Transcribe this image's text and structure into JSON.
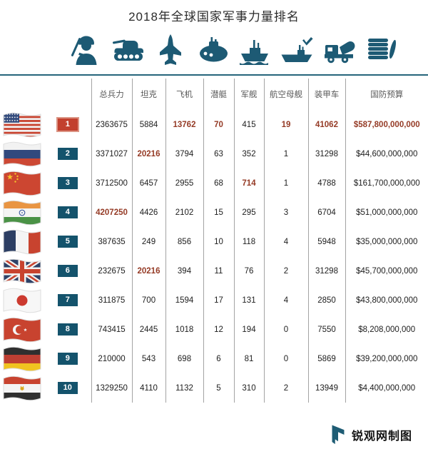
{
  "title": "2018年全球国家军事力量排名",
  "icons": [
    "soldier-icon",
    "tank-icon",
    "fighter-jet-icon",
    "submarine-icon",
    "warship-icon",
    "aircraft-carrier-icon",
    "military-truck-icon",
    "money-coins-icon"
  ],
  "colors": {
    "teal_accent": "#1d5a74",
    "rank_badge_teal": "#14536c",
    "rank_badge_red": "#c2402e",
    "highlight_red": "#953b26",
    "grid_line": "#a3a3a3",
    "header_text": "#595959"
  },
  "chart_data": {
    "type": "table",
    "title": "2018年全球国家军事力量排名",
    "columns": [
      "总兵力",
      "坦克",
      "飞机",
      "潜艇",
      "军舰",
      "航空母舰",
      "装甲车",
      "国防预算"
    ],
    "rows": [
      {
        "rank": "1",
        "country": "United States",
        "flag": "usa",
        "values": [
          "2363675",
          "5884",
          "13762",
          "70",
          "415",
          "19",
          "41062",
          "$587,800,000,000"
        ],
        "highlighted_value_indices": [
          2,
          3,
          5,
          6,
          7
        ]
      },
      {
        "rank": "2",
        "country": "Russia",
        "flag": "rus",
        "values": [
          "3371027",
          "20216",
          "3794",
          "63",
          "352",
          "1",
          "31298",
          "$44,600,000,000"
        ],
        "highlighted_value_indices": [
          1
        ]
      },
      {
        "rank": "3",
        "country": "China",
        "flag": "chn",
        "values": [
          "3712500",
          "6457",
          "2955",
          "68",
          "714",
          "1",
          "4788",
          "$161,700,000,000"
        ],
        "highlighted_value_indices": [
          4
        ]
      },
      {
        "rank": "4",
        "country": "India",
        "flag": "ind",
        "values": [
          "4207250",
          "4426",
          "2102",
          "15",
          "295",
          "3",
          "6704",
          "$51,000,000,000"
        ],
        "highlighted_value_indices": [
          0
        ]
      },
      {
        "rank": "5",
        "country": "France",
        "flag": "fra",
        "values": [
          "387635",
          "249",
          "856",
          "10",
          "118",
          "4",
          "5948",
          "$35,000,000,000"
        ],
        "highlighted_value_indices": []
      },
      {
        "rank": "6",
        "country": "United Kingdom",
        "flag": "gbr",
        "values": [
          "232675",
          "20216",
          "394",
          "11",
          "76",
          "2",
          "31298",
          "$45,700,000,000"
        ],
        "highlighted_value_indices": [
          1
        ]
      },
      {
        "rank": "7",
        "country": "Japan",
        "flag": "jpn",
        "values": [
          "311875",
          "700",
          "1594",
          "17",
          "131",
          "4",
          "2850",
          "$43,800,000,000"
        ],
        "highlighted_value_indices": []
      },
      {
        "rank": "8",
        "country": "Turkey",
        "flag": "tur",
        "values": [
          "743415",
          "2445",
          "1018",
          "12",
          "194",
          "0",
          "7550",
          "$8,208,000,000"
        ],
        "highlighted_value_indices": []
      },
      {
        "rank": "9",
        "country": "Germany",
        "flag": "deu",
        "values": [
          "210000",
          "543",
          "698",
          "6",
          "81",
          "0",
          "5869",
          "$39,200,000,000"
        ],
        "highlighted_value_indices": []
      },
      {
        "rank": "10",
        "country": "Egypt",
        "flag": "egy",
        "values": [
          "1329250",
          "4110",
          "1132",
          "5",
          "310",
          "2",
          "13949",
          "$4,400,000,000"
        ],
        "highlighted_value_indices": []
      }
    ]
  },
  "footer": {
    "credit": "锐观网制图"
  }
}
